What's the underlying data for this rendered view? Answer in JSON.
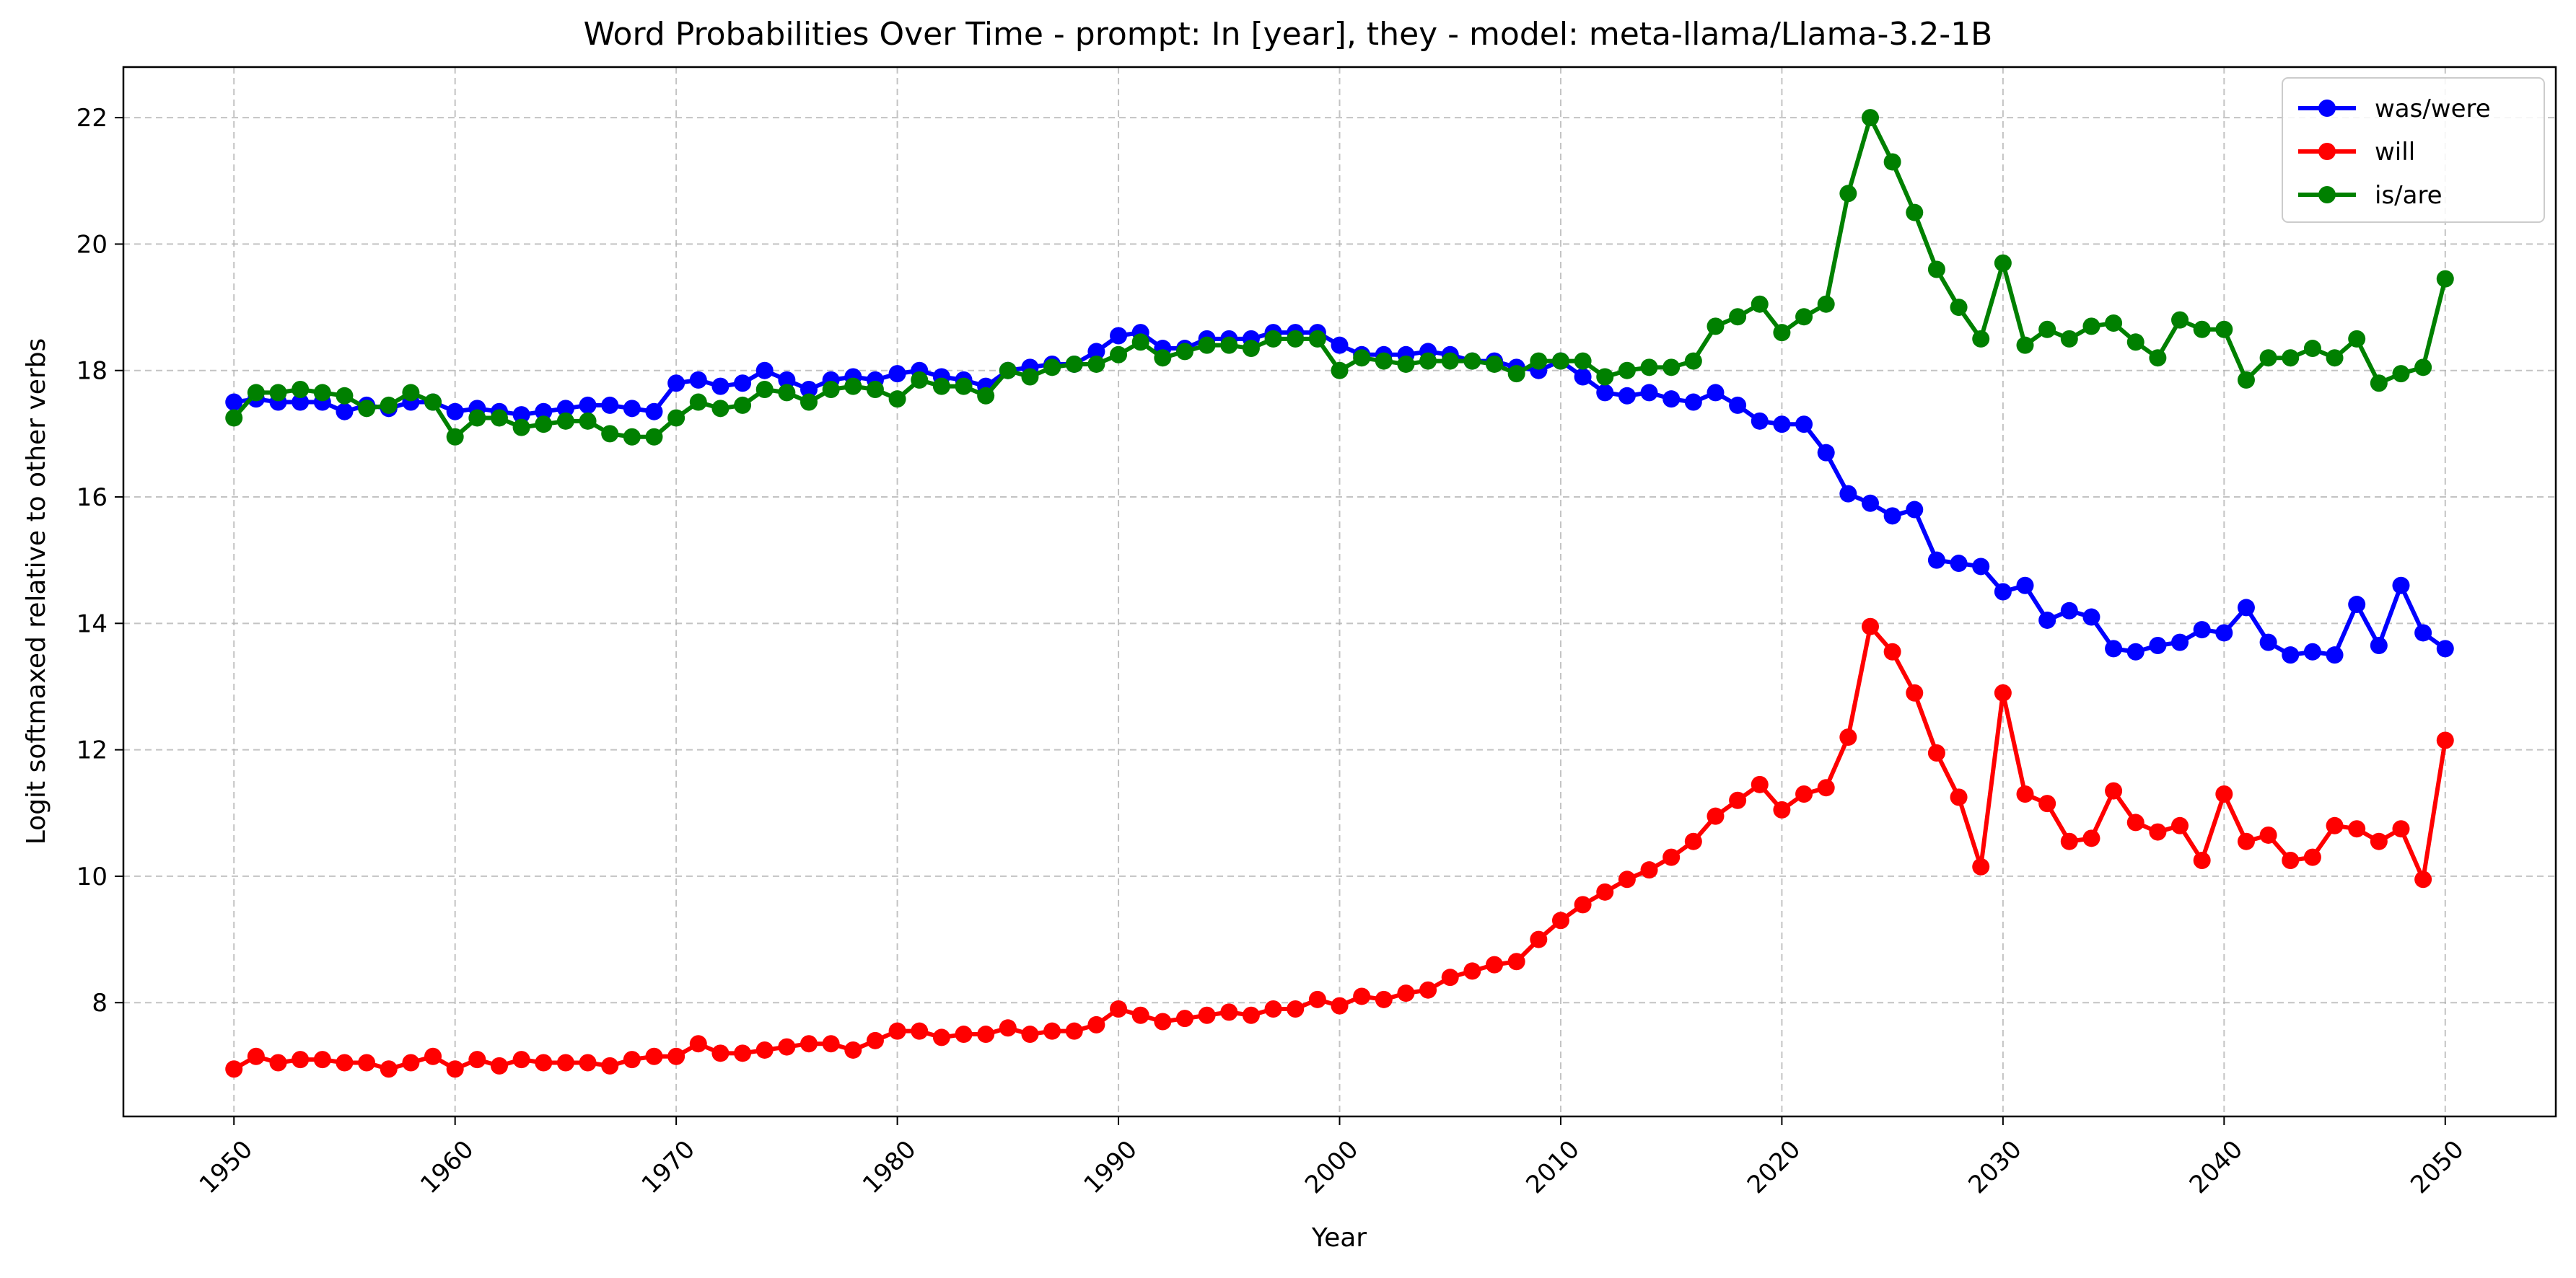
{
  "chart_data": {
    "type": "line",
    "title": "Word Probabilities Over Time - prompt: In [year], they - model: meta-llama/Llama-3.2-1B",
    "xlabel": "Year",
    "ylabel": "Logit softmaxed relative to other verbs",
    "xlim": [
      1945,
      2055
    ],
    "ylim": [
      6.2,
      22.8
    ],
    "xticks": [
      1950,
      1960,
      1970,
      1980,
      1990,
      2000,
      2010,
      2020,
      2030,
      2040,
      2050
    ],
    "yticks": [
      8,
      10,
      12,
      14,
      16,
      18,
      20,
      22
    ],
    "grid": true,
    "legend_position": "top-right",
    "x_start": 1950,
    "series": [
      {
        "name": "was/were",
        "color": "#0000ff",
        "values": [
          17.5,
          17.55,
          17.5,
          17.5,
          17.5,
          17.35,
          17.45,
          17.4,
          17.5,
          17.5,
          17.35,
          17.4,
          17.35,
          17.3,
          17.35,
          17.4,
          17.45,
          17.45,
          17.4,
          17.35,
          17.8,
          17.85,
          17.75,
          17.8,
          18.0,
          17.85,
          17.7,
          17.85,
          17.9,
          17.85,
          17.95,
          18.0,
          17.9,
          17.85,
          17.75,
          18.0,
          18.05,
          18.1,
          18.1,
          18.3,
          18.55,
          18.6,
          18.35,
          18.35,
          18.5,
          18.5,
          18.5,
          18.6,
          18.6,
          18.6,
          18.4,
          18.25,
          18.25,
          18.25,
          18.3,
          18.25,
          18.15,
          18.15,
          18.05,
          18.0,
          18.15,
          17.9,
          17.65,
          17.6,
          17.65,
          17.55,
          17.5,
          17.65,
          17.45,
          17.2,
          17.15,
          17.15,
          16.7,
          16.05,
          15.9,
          15.7,
          15.8,
          15.0,
          14.95,
          14.9,
          14.5,
          14.6,
          14.05,
          14.2,
          14.1,
          13.6,
          13.55,
          13.65,
          13.7,
          13.9,
          13.85,
          14.25,
          13.7,
          13.5,
          13.55,
          13.5,
          14.3,
          13.65,
          14.6,
          13.85,
          13.6
        ]
      },
      {
        "name": "will",
        "color": "#ff0000",
        "values": [
          6.95,
          7.15,
          7.05,
          7.1,
          7.1,
          7.05,
          7.05,
          6.95,
          7.05,
          7.15,
          6.95,
          7.1,
          7.0,
          7.1,
          7.05,
          7.05,
          7.05,
          7.0,
          7.1,
          7.15,
          7.15,
          7.35,
          7.2,
          7.2,
          7.25,
          7.3,
          7.35,
          7.35,
          7.25,
          7.4,
          7.55,
          7.55,
          7.45,
          7.5,
          7.5,
          7.6,
          7.5,
          7.55,
          7.55,
          7.65,
          7.9,
          7.8,
          7.7,
          7.75,
          7.8,
          7.85,
          7.8,
          7.9,
          7.9,
          8.05,
          7.95,
          8.1,
          8.05,
          8.15,
          8.2,
          8.4,
          8.5,
          8.6,
          8.65,
          9.0,
          9.3,
          9.55,
          9.75,
          9.95,
          10.1,
          10.3,
          10.55,
          10.95,
          11.2,
          11.45,
          11.05,
          11.3,
          11.4,
          12.2,
          13.95,
          13.55,
          12.9,
          11.95,
          11.25,
          10.15,
          12.9,
          11.3,
          11.15,
          10.55,
          10.6,
          11.35,
          10.85,
          10.7,
          10.8,
          10.25,
          11.3,
          10.55,
          10.65,
          10.25,
          10.3,
          10.8,
          10.75,
          10.55,
          10.75,
          9.95,
          12.15
        ]
      },
      {
        "name": "is/are",
        "color": "#008000",
        "values": [
          17.25,
          17.65,
          17.65,
          17.7,
          17.65,
          17.6,
          17.4,
          17.45,
          17.65,
          17.5,
          16.95,
          17.25,
          17.25,
          17.1,
          17.15,
          17.2,
          17.2,
          17.0,
          16.95,
          16.95,
          17.25,
          17.5,
          17.4,
          17.45,
          17.7,
          17.65,
          17.5,
          17.7,
          17.75,
          17.7,
          17.55,
          17.85,
          17.75,
          17.75,
          17.6,
          18.0,
          17.9,
          18.05,
          18.1,
          18.1,
          18.25,
          18.45,
          18.2,
          18.3,
          18.4,
          18.4,
          18.35,
          18.5,
          18.5,
          18.5,
          18.0,
          18.2,
          18.15,
          18.1,
          18.15,
          18.15,
          18.15,
          18.1,
          17.95,
          18.15,
          18.15,
          18.15,
          17.9,
          18.0,
          18.05,
          18.05,
          18.15,
          18.7,
          18.85,
          19.05,
          18.6,
          18.85,
          19.05,
          20.8,
          22.0,
          21.3,
          20.5,
          19.6,
          19.0,
          18.5,
          19.7,
          18.4,
          18.65,
          18.5,
          18.7,
          18.75,
          18.45,
          18.2,
          18.8,
          18.65,
          18.65,
          17.85,
          18.2,
          18.2,
          18.35,
          18.2,
          18.5,
          17.8,
          17.95,
          18.05,
          19.45
        ]
      }
    ]
  }
}
